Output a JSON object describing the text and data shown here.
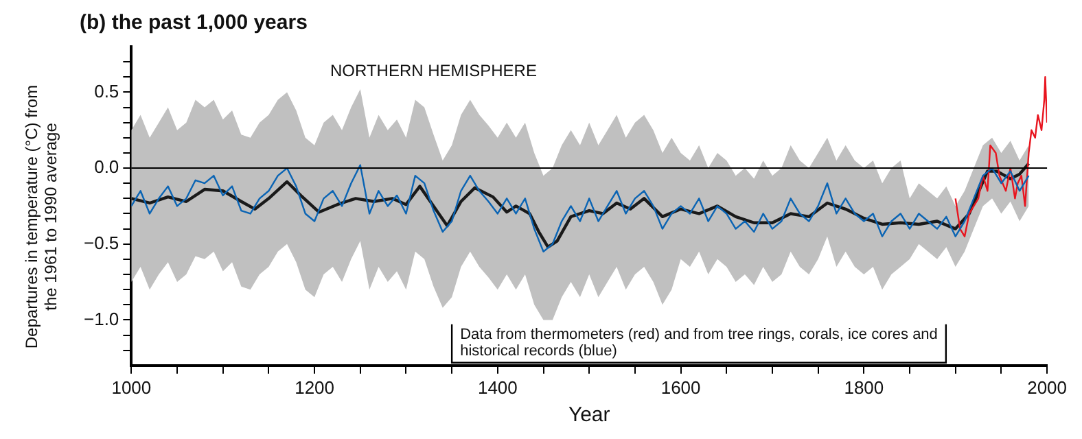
{
  "chart_data": {
    "type": "line",
    "title": "(b) the past 1,000 years",
    "xlabel": "Year",
    "ylabel": "Departures in temperature (°C) from the 1961 to 1990 average",
    "annotations": [
      "NORTHERN HEMISPHERE",
      "Data from thermometers (red) and from tree rings, corals, ice cores and historical records (blue)"
    ],
    "xlim": [
      1000,
      2000
    ],
    "xticks": [
      1000,
      {
        "value": 1050,
        "label": null
      },
      {
        "value": 1100,
        "label": null
      },
      {
        "value": 1150,
        "label": null
      },
      1200,
      {
        "value": 1250,
        "label": null
      },
      {
        "value": 1300,
        "label": null
      },
      {
        "value": 1350,
        "label": null
      },
      1400,
      {
        "value": 1450,
        "label": null
      },
      {
        "value": 1500,
        "label": null
      },
      {
        "value": 1550,
        "label": null
      },
      1600,
      {
        "value": 1650,
        "label": null
      },
      {
        "value": 1700,
        "label": null
      },
      {
        "value": 1750,
        "label": null
      },
      1800,
      {
        "value": 1850,
        "label": null
      },
      {
        "value": 1900,
        "label": null
      },
      {
        "value": 1950,
        "label": null
      },
      2000
    ],
    "ylim": [
      -1.3,
      0.8
    ],
    "yticks": [
      {
        "value": -1.2,
        "label": null
      },
      {
        "value": -1.1,
        "label": null
      },
      {
        "value": -1.0,
        "label": "−1.0"
      },
      {
        "value": -0.9,
        "label": null
      },
      {
        "value": -0.8,
        "label": null
      },
      {
        "value": -0.7,
        "label": null
      },
      {
        "value": -0.6,
        "label": null
      },
      {
        "value": -0.5,
        "label": "−0.5"
      },
      {
        "value": -0.4,
        "label": null
      },
      {
        "value": -0.3,
        "label": null
      },
      {
        "value": -0.2,
        "label": null
      },
      {
        "value": -0.1,
        "label": null
      },
      {
        "value": 0,
        "label": "0.0"
      },
      {
        "value": 0.1,
        "label": null
      },
      {
        "value": 0.2,
        "label": null
      },
      {
        "value": 0.3,
        "label": null
      },
      {
        "value": 0.4,
        "label": null
      },
      {
        "value": 0.5,
        "label": "0.5"
      },
      {
        "value": 0.6,
        "label": null
      },
      {
        "value": 0.7,
        "label": null
      }
    ],
    "grid": false,
    "legend": false,
    "marker": "none",
    "ref_lines": [
      {
        "axis": "y",
        "value": 0,
        "color": "#000000"
      }
    ],
    "series": [
      {
        "color": "#0a64b4",
        "x": [
          1000,
          1010,
          1020,
          1030,
          1040,
          1050,
          1060,
          1070,
          1080,
          1090,
          1100,
          1110,
          1120,
          1130,
          1140,
          1150,
          1160,
          1170,
          1180,
          1190,
          1200,
          1210,
          1220,
          1230,
          1240,
          1250,
          1260,
          1270,
          1280,
          1290,
          1300,
          1310,
          1320,
          1330,
          1340,
          1350,
          1360,
          1370,
          1380,
          1390,
          1400,
          1410,
          1420,
          1430,
          1440,
          1450,
          1460,
          1470,
          1480,
          1490,
          1500,
          1510,
          1520,
          1530,
          1540,
          1550,
          1560,
          1570,
          1580,
          1590,
          1600,
          1610,
          1620,
          1630,
          1640,
          1650,
          1660,
          1670,
          1680,
          1690,
          1700,
          1710,
          1720,
          1730,
          1740,
          1750,
          1760,
          1770,
          1780,
          1790,
          1800,
          1810,
          1820,
          1830,
          1840,
          1850,
          1860,
          1870,
          1880,
          1890,
          1900,
          1910,
          1920,
          1930,
          1940,
          1950,
          1960,
          1970,
          1980
        ],
        "values": [
          -0.25,
          -0.15,
          -0.3,
          -0.2,
          -0.12,
          -0.25,
          -0.2,
          -0.08,
          -0.1,
          -0.05,
          -0.18,
          -0.12,
          -0.28,
          -0.3,
          -0.2,
          -0.15,
          -0.05,
          0.0,
          -0.12,
          -0.3,
          -0.35,
          -0.2,
          -0.15,
          -0.25,
          -0.1,
          0.02,
          -0.3,
          -0.15,
          -0.25,
          -0.18,
          -0.3,
          -0.05,
          -0.1,
          -0.28,
          -0.42,
          -0.35,
          -0.15,
          -0.05,
          -0.15,
          -0.22,
          -0.3,
          -0.2,
          -0.3,
          -0.2,
          -0.4,
          -0.55,
          -0.5,
          -0.35,
          -0.25,
          -0.35,
          -0.2,
          -0.35,
          -0.25,
          -0.15,
          -0.3,
          -0.2,
          -0.15,
          -0.25,
          -0.4,
          -0.3,
          -0.25,
          -0.3,
          -0.2,
          -0.35,
          -0.25,
          -0.3,
          -0.4,
          -0.35,
          -0.42,
          -0.3,
          -0.4,
          -0.35,
          -0.2,
          -0.3,
          -0.35,
          -0.25,
          -0.1,
          -0.3,
          -0.2,
          -0.3,
          -0.35,
          -0.3,
          -0.45,
          -0.35,
          -0.3,
          -0.4,
          -0.3,
          -0.35,
          -0.4,
          -0.32,
          -0.45,
          -0.35,
          -0.2,
          -0.05,
          0.0,
          -0.1,
          -0.02,
          -0.15,
          -0.05
        ],
        "upper": [
          0.25,
          0.35,
          0.2,
          0.3,
          0.4,
          0.25,
          0.3,
          0.45,
          0.4,
          0.45,
          0.32,
          0.38,
          0.22,
          0.2,
          0.3,
          0.35,
          0.45,
          0.5,
          0.38,
          0.2,
          0.15,
          0.3,
          0.35,
          0.25,
          0.4,
          0.52,
          0.2,
          0.35,
          0.25,
          0.32,
          0.2,
          0.45,
          0.4,
          0.22,
          0.05,
          0.15,
          0.35,
          0.45,
          0.35,
          0.28,
          0.2,
          0.3,
          0.2,
          0.3,
          0.1,
          -0.05,
          0.0,
          0.15,
          0.25,
          0.15,
          0.3,
          0.15,
          0.25,
          0.35,
          0.2,
          0.3,
          0.35,
          0.25,
          0.1,
          0.2,
          0.1,
          0.05,
          0.15,
          0.0,
          0.1,
          0.05,
          -0.05,
          0.0,
          -0.07,
          0.05,
          -0.05,
          0.0,
          0.15,
          0.05,
          0.0,
          0.1,
          0.2,
          0.05,
          0.15,
          0.05,
          0.0,
          0.05,
          -0.1,
          0.0,
          0.05,
          -0.2,
          -0.1,
          -0.15,
          -0.2,
          -0.12,
          -0.25,
          -0.15,
          0.0,
          0.15,
          0.2,
          0.1,
          0.18,
          0.05,
          0.15
        ],
        "lower": [
          -0.75,
          -0.65,
          -0.8,
          -0.7,
          -0.62,
          -0.75,
          -0.7,
          -0.58,
          -0.6,
          -0.55,
          -0.68,
          -0.62,
          -0.78,
          -0.8,
          -0.7,
          -0.65,
          -0.55,
          -0.5,
          -0.62,
          -0.8,
          -0.85,
          -0.7,
          -0.65,
          -0.75,
          -0.6,
          -0.48,
          -0.8,
          -0.65,
          -0.75,
          -0.68,
          -0.8,
          -0.55,
          -0.6,
          -0.78,
          -0.92,
          -0.85,
          -0.65,
          -0.55,
          -0.65,
          -0.72,
          -0.8,
          -0.7,
          -0.8,
          -0.7,
          -0.9,
          -1.0,
          -1.0,
          -0.85,
          -0.75,
          -0.85,
          -0.7,
          -0.85,
          -0.75,
          -0.65,
          -0.8,
          -0.7,
          -0.65,
          -0.75,
          -0.9,
          -0.8,
          -0.6,
          -0.65,
          -0.55,
          -0.7,
          -0.6,
          -0.65,
          -0.75,
          -0.7,
          -0.77,
          -0.65,
          -0.75,
          -0.7,
          -0.55,
          -0.65,
          -0.7,
          -0.6,
          -0.45,
          -0.65,
          -0.55,
          -0.65,
          -0.7,
          -0.65,
          -0.8,
          -0.7,
          -0.65,
          -0.6,
          -0.5,
          -0.55,
          -0.6,
          -0.52,
          -0.65,
          -0.55,
          -0.4,
          -0.25,
          -0.2,
          -0.3,
          -0.22,
          -0.35,
          -0.25
        ]
      },
      {
        "color": "#e8141e",
        "x": [
          1900,
          1905,
          1910,
          1915,
          1920,
          1925,
          1930,
          1935,
          1938,
          1944,
          1948,
          1955,
          1960,
          1965,
          1968,
          1972,
          1976,
          1980,
          1983,
          1987,
          1990,
          1994,
          1997,
          1998,
          2000
        ],
        "values": [
          -0.2,
          -0.4,
          -0.45,
          -0.3,
          -0.25,
          -0.2,
          -0.05,
          -0.15,
          0.15,
          0.1,
          -0.05,
          -0.15,
          0.0,
          -0.2,
          -0.1,
          -0.05,
          -0.25,
          0.1,
          0.25,
          0.2,
          0.35,
          0.25,
          0.45,
          0.6,
          0.3
        ]
      },
      {
        "color": "#1a1a1a",
        "x": [
          1000,
          1020,
          1040,
          1060,
          1080,
          1100,
          1120,
          1135,
          1150,
          1170,
          1185,
          1205,
          1225,
          1245,
          1265,
          1285,
          1300,
          1315,
          1330,
          1345,
          1360,
          1375,
          1395,
          1410,
          1420,
          1435,
          1445,
          1455,
          1465,
          1480,
          1500,
          1515,
          1530,
          1545,
          1560,
          1580,
          1600,
          1620,
          1640,
          1660,
          1680,
          1700,
          1720,
          1740,
          1760,
          1780,
          1800,
          1820,
          1840,
          1860,
          1880,
          1900,
          1915,
          1935,
          1945,
          1960,
          1970,
          1980
        ],
        "values": [
          -0.2,
          -0.23,
          -0.19,
          -0.22,
          -0.14,
          -0.15,
          -0.22,
          -0.27,
          -0.2,
          -0.09,
          -0.18,
          -0.29,
          -0.24,
          -0.2,
          -0.22,
          -0.2,
          -0.24,
          -0.12,
          -0.25,
          -0.38,
          -0.22,
          -0.13,
          -0.19,
          -0.29,
          -0.25,
          -0.3,
          -0.42,
          -0.52,
          -0.48,
          -0.32,
          -0.28,
          -0.3,
          -0.23,
          -0.27,
          -0.2,
          -0.32,
          -0.27,
          -0.3,
          -0.25,
          -0.32,
          -0.36,
          -0.36,
          -0.3,
          -0.32,
          -0.23,
          -0.27,
          -0.33,
          -0.37,
          -0.36,
          -0.37,
          -0.35,
          -0.4,
          -0.3,
          -0.02,
          -0.02,
          -0.07,
          -0.04,
          0.03
        ]
      }
    ]
  }
}
